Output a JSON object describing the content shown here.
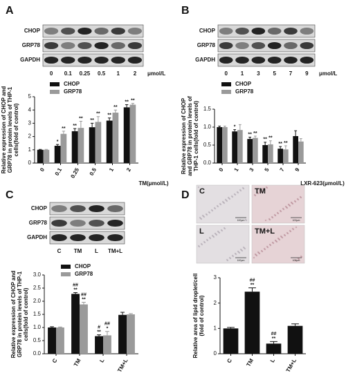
{
  "panels": [
    "A",
    "B",
    "C",
    "D"
  ],
  "blots": [
    {
      "rows": [
        "CHOP",
        "GRP78",
        "GAPDH"
      ],
      "lanes": [
        "0",
        "0.1",
        "0.25",
        "0.5",
        "1",
        "2"
      ],
      "unit": "μmol/L"
    },
    {
      "rows": [
        "CHOP",
        "GRP78",
        "GAPDH"
      ],
      "lanes": [
        "0",
        "1",
        "3",
        "5",
        "7",
        "9"
      ],
      "unit": "μmol/L"
    },
    {
      "rows": [
        "CHOP",
        "GRP78",
        "GAPDH"
      ],
      "lanes": [
        "C",
        "TM",
        "L",
        "TM+L"
      ]
    }
  ],
  "micrographs": {
    "labels": [
      "C",
      "TM",
      "L",
      "TM+L"
    ],
    "scale_bar": "100μm"
  },
  "chart_data": [
    {
      "type": "bar",
      "ylabel": [
        "Relative expression of CHOP and",
        "GRP78 in protein levels of THP-1",
        "cells(fold of control)"
      ],
      "xlabel": "TM(μmol/L)",
      "categories": [
        "0",
        "0.1",
        "0.25",
        "0.5",
        "1",
        "2"
      ],
      "series": [
        {
          "name": "CHOP",
          "color": "#111111",
          "values": [
            1,
            1.3,
            2.4,
            2.7,
            3.2,
            4.2
          ],
          "errors": [
            0.03,
            0.1,
            0.2,
            0.3,
            0.2,
            0.2
          ],
          "annotations": [
            null,
            [
              "*"
            ],
            [
              "**"
            ],
            [
              "**"
            ],
            [
              "**"
            ],
            [
              "**"
            ]
          ]
        },
        {
          "name": "GRP78",
          "color": "#9a9a9a",
          "values": [
            1,
            2.2,
            2.65,
            3.1,
            3.8,
            4.4
          ],
          "errors": [
            0.03,
            0.2,
            0.5,
            0.4,
            0.2,
            0.1
          ],
          "annotations": [
            null,
            [
              "**"
            ],
            [
              "**"
            ],
            [
              "**"
            ],
            [
              "**"
            ],
            [
              "**"
            ]
          ]
        }
      ],
      "ylim": [
        0,
        5
      ],
      "yticks": [
        0,
        1,
        2,
        3,
        4,
        5
      ],
      "legend": "top-left"
    },
    {
      "type": "bar",
      "ylabel": [
        "Relative expression of CHOP",
        "and GRP78 in protein levels of",
        "THP-1 cells(fold of control)"
      ],
      "xlabel": "LXR-623(μmol/L)",
      "categories": [
        "0",
        "1",
        "3",
        "5",
        "7",
        "9"
      ],
      "series": [
        {
          "name": "CHOP",
          "color": "#111111",
          "values": [
            1,
            0.88,
            0.67,
            0.5,
            0.4,
            0.75
          ],
          "errors": [
            0.03,
            0.05,
            0.05,
            0.08,
            0.06,
            0.15
          ],
          "annotations": [
            null,
            [
              "*"
            ],
            [
              "**"
            ],
            [
              "**"
            ],
            [
              "**"
            ],
            null
          ]
        },
        {
          "name": "GRP78",
          "color": "#9a9a9a",
          "values": [
            1,
            0.92,
            0.7,
            0.52,
            0.38,
            0.6
          ],
          "errors": [
            0.03,
            0.15,
            0.05,
            0.1,
            0.1,
            0.08
          ],
          "annotations": [
            null,
            null,
            [
              "**"
            ],
            [
              "**"
            ],
            [
              "**"
            ],
            null
          ]
        }
      ],
      "ylim": [
        0,
        1.5
      ],
      "yticks": [
        {
          "value": 0,
          "label": "0.0"
        },
        {
          "value": 0.5,
          "label": "0.5"
        },
        {
          "value": 1,
          "label": "1.0"
        },
        {
          "value": 1.5,
          "label": "1.5"
        }
      ],
      "legend": "top-left"
    },
    {
      "type": "bar",
      "ylabel": [
        "Relative expression of CHOP and",
        "GRP78 in protein levels of THP-1",
        "cells(fold of control)"
      ],
      "categories": [
        "C",
        "TM",
        "L",
        "TM+L"
      ],
      "series": [
        {
          "name": "CHOP",
          "color": "#111111",
          "values": [
            1,
            2.28,
            0.67,
            1.48
          ],
          "errors": [
            0.03,
            0.05,
            0.05,
            0.1
          ],
          "annotations": [
            null,
            [
              "##",
              "**"
            ],
            [
              "#",
              "**"
            ],
            null
          ]
        },
        {
          "name": "GRP78",
          "color": "#9a9a9a",
          "values": [
            1,
            1.88,
            0.7,
            1.5
          ],
          "errors": [
            0.02,
            0.08,
            0.15,
            0.03
          ],
          "annotations": [
            null,
            [
              "##",
              "**"
            ],
            [
              "##",
              "*"
            ],
            null
          ]
        }
      ],
      "ylim": [
        0,
        3
      ],
      "yticks": [
        {
          "value": 0,
          "label": "0.0"
        },
        {
          "value": 0.5,
          "label": "0.5"
        },
        {
          "value": 1,
          "label": "1.0"
        },
        {
          "value": 1.5,
          "label": "1.5"
        },
        {
          "value": 2,
          "label": "2.0"
        },
        {
          "value": 2.5,
          "label": "2.5"
        },
        {
          "value": 3,
          "label": "3.0"
        }
      ],
      "legend": "top-left"
    },
    {
      "type": "bar",
      "ylabel": [
        "Relative area of lipid droplet/cell",
        "(fold of control)"
      ],
      "categories": [
        "C",
        "TM",
        "L",
        "TM+L"
      ],
      "series": [
        {
          "color": "#111111",
          "values": [
            1,
            2.45,
            0.4,
            1.1
          ],
          "errors": [
            0.04,
            0.15,
            0.08,
            0.08
          ],
          "annotations": [
            null,
            [
              "##",
              "**"
            ],
            [
              "##",
              "**"
            ],
            null
          ]
        }
      ],
      "ylim": [
        0,
        3
      ],
      "yticks": [
        0,
        1,
        2,
        3
      ]
    }
  ]
}
